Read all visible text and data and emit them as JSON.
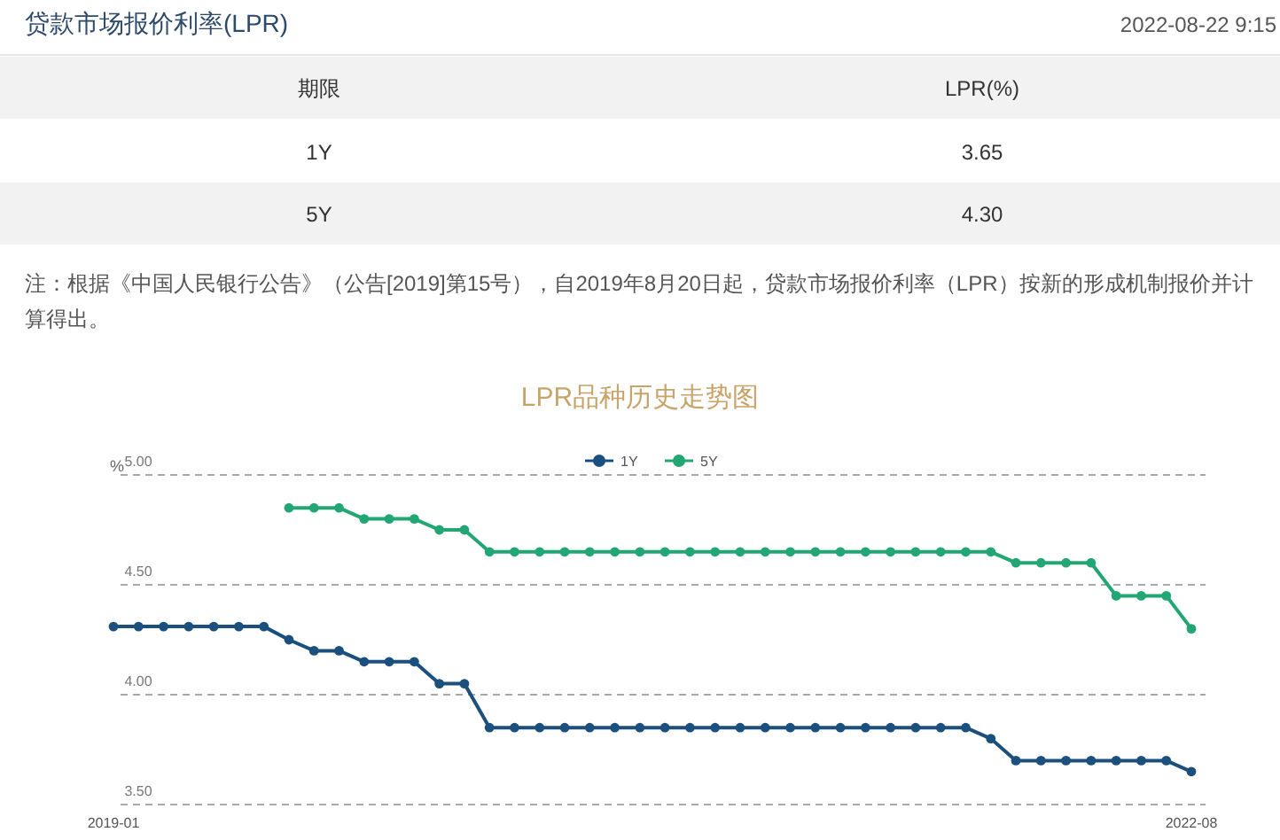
{
  "chart_data": [
    {
      "type": "other",
      "title": "贷款市场报价利率(LPR)",
      "annotations": [
        "2022-08-22 9:15",
        "期限",
        "LPR(%)",
        "1Y",
        "3.65",
        "5Y",
        "4.30",
        "注：根据《中国人民银行公告》（公告[2019]第15号），自2019年8月20日起，贷款市场报价利率（LPR）按新的形成机制报价并计算得出。"
      ]
    },
    {
      "type": "line",
      "title": "LPR品种历史走势图",
      "ylabel": "%",
      "categories": [
        "2019-01",
        null,
        null,
        null,
        null,
        null,
        null,
        null,
        null,
        null,
        null,
        null,
        null,
        null,
        null,
        null,
        null,
        null,
        null,
        null,
        null,
        null,
        null,
        null,
        null,
        null,
        null,
        null,
        null,
        null,
        null,
        null,
        null,
        null,
        null,
        null,
        null,
        null,
        null,
        null,
        null,
        null,
        null,
        "2022-08"
      ],
      "series": [
        {
          "name": "1Y",
          "color": "#1b4f7e",
          "values": [
            4.31,
            4.31,
            4.31,
            4.31,
            4.31,
            4.31,
            4.31,
            4.25,
            4.2,
            4.2,
            4.15,
            4.15,
            4.15,
            4.05,
            4.05,
            3.85,
            3.85,
            3.85,
            3.85,
            3.85,
            3.85,
            3.85,
            3.85,
            3.85,
            3.85,
            3.85,
            3.85,
            3.85,
            3.85,
            3.85,
            3.85,
            3.85,
            3.85,
            3.85,
            3.85,
            3.8,
            3.7,
            3.7,
            3.7,
            3.7,
            3.7,
            3.7,
            3.7,
            3.65
          ]
        },
        {
          "name": "5Y",
          "color": "#22a673",
          "values": [
            null,
            null,
            null,
            null,
            null,
            null,
            null,
            4.85,
            4.85,
            4.85,
            4.8,
            4.8,
            4.8,
            4.75,
            4.75,
            4.65,
            4.65,
            4.65,
            4.65,
            4.65,
            4.65,
            4.65,
            4.65,
            4.65,
            4.65,
            4.65,
            4.65,
            4.65,
            4.65,
            4.65,
            4.65,
            4.65,
            4.65,
            4.65,
            4.65,
            4.65,
            4.6,
            4.6,
            4.6,
            4.6,
            4.45,
            4.45,
            4.45,
            4.3
          ]
        }
      ],
      "ylim": [
        3.5,
        5.0
      ],
      "yticks": [
        {
          "value": 3.5,
          "label": "3.50"
        },
        {
          "value": 4.0,
          "label": "4.00"
        },
        {
          "value": 4.5,
          "label": "4.50"
        },
        {
          "value": 5.0,
          "label": "5.00"
        }
      ],
      "grid": "y",
      "legend": "top",
      "marker": "circle",
      "line_style": "solid"
    }
  ]
}
